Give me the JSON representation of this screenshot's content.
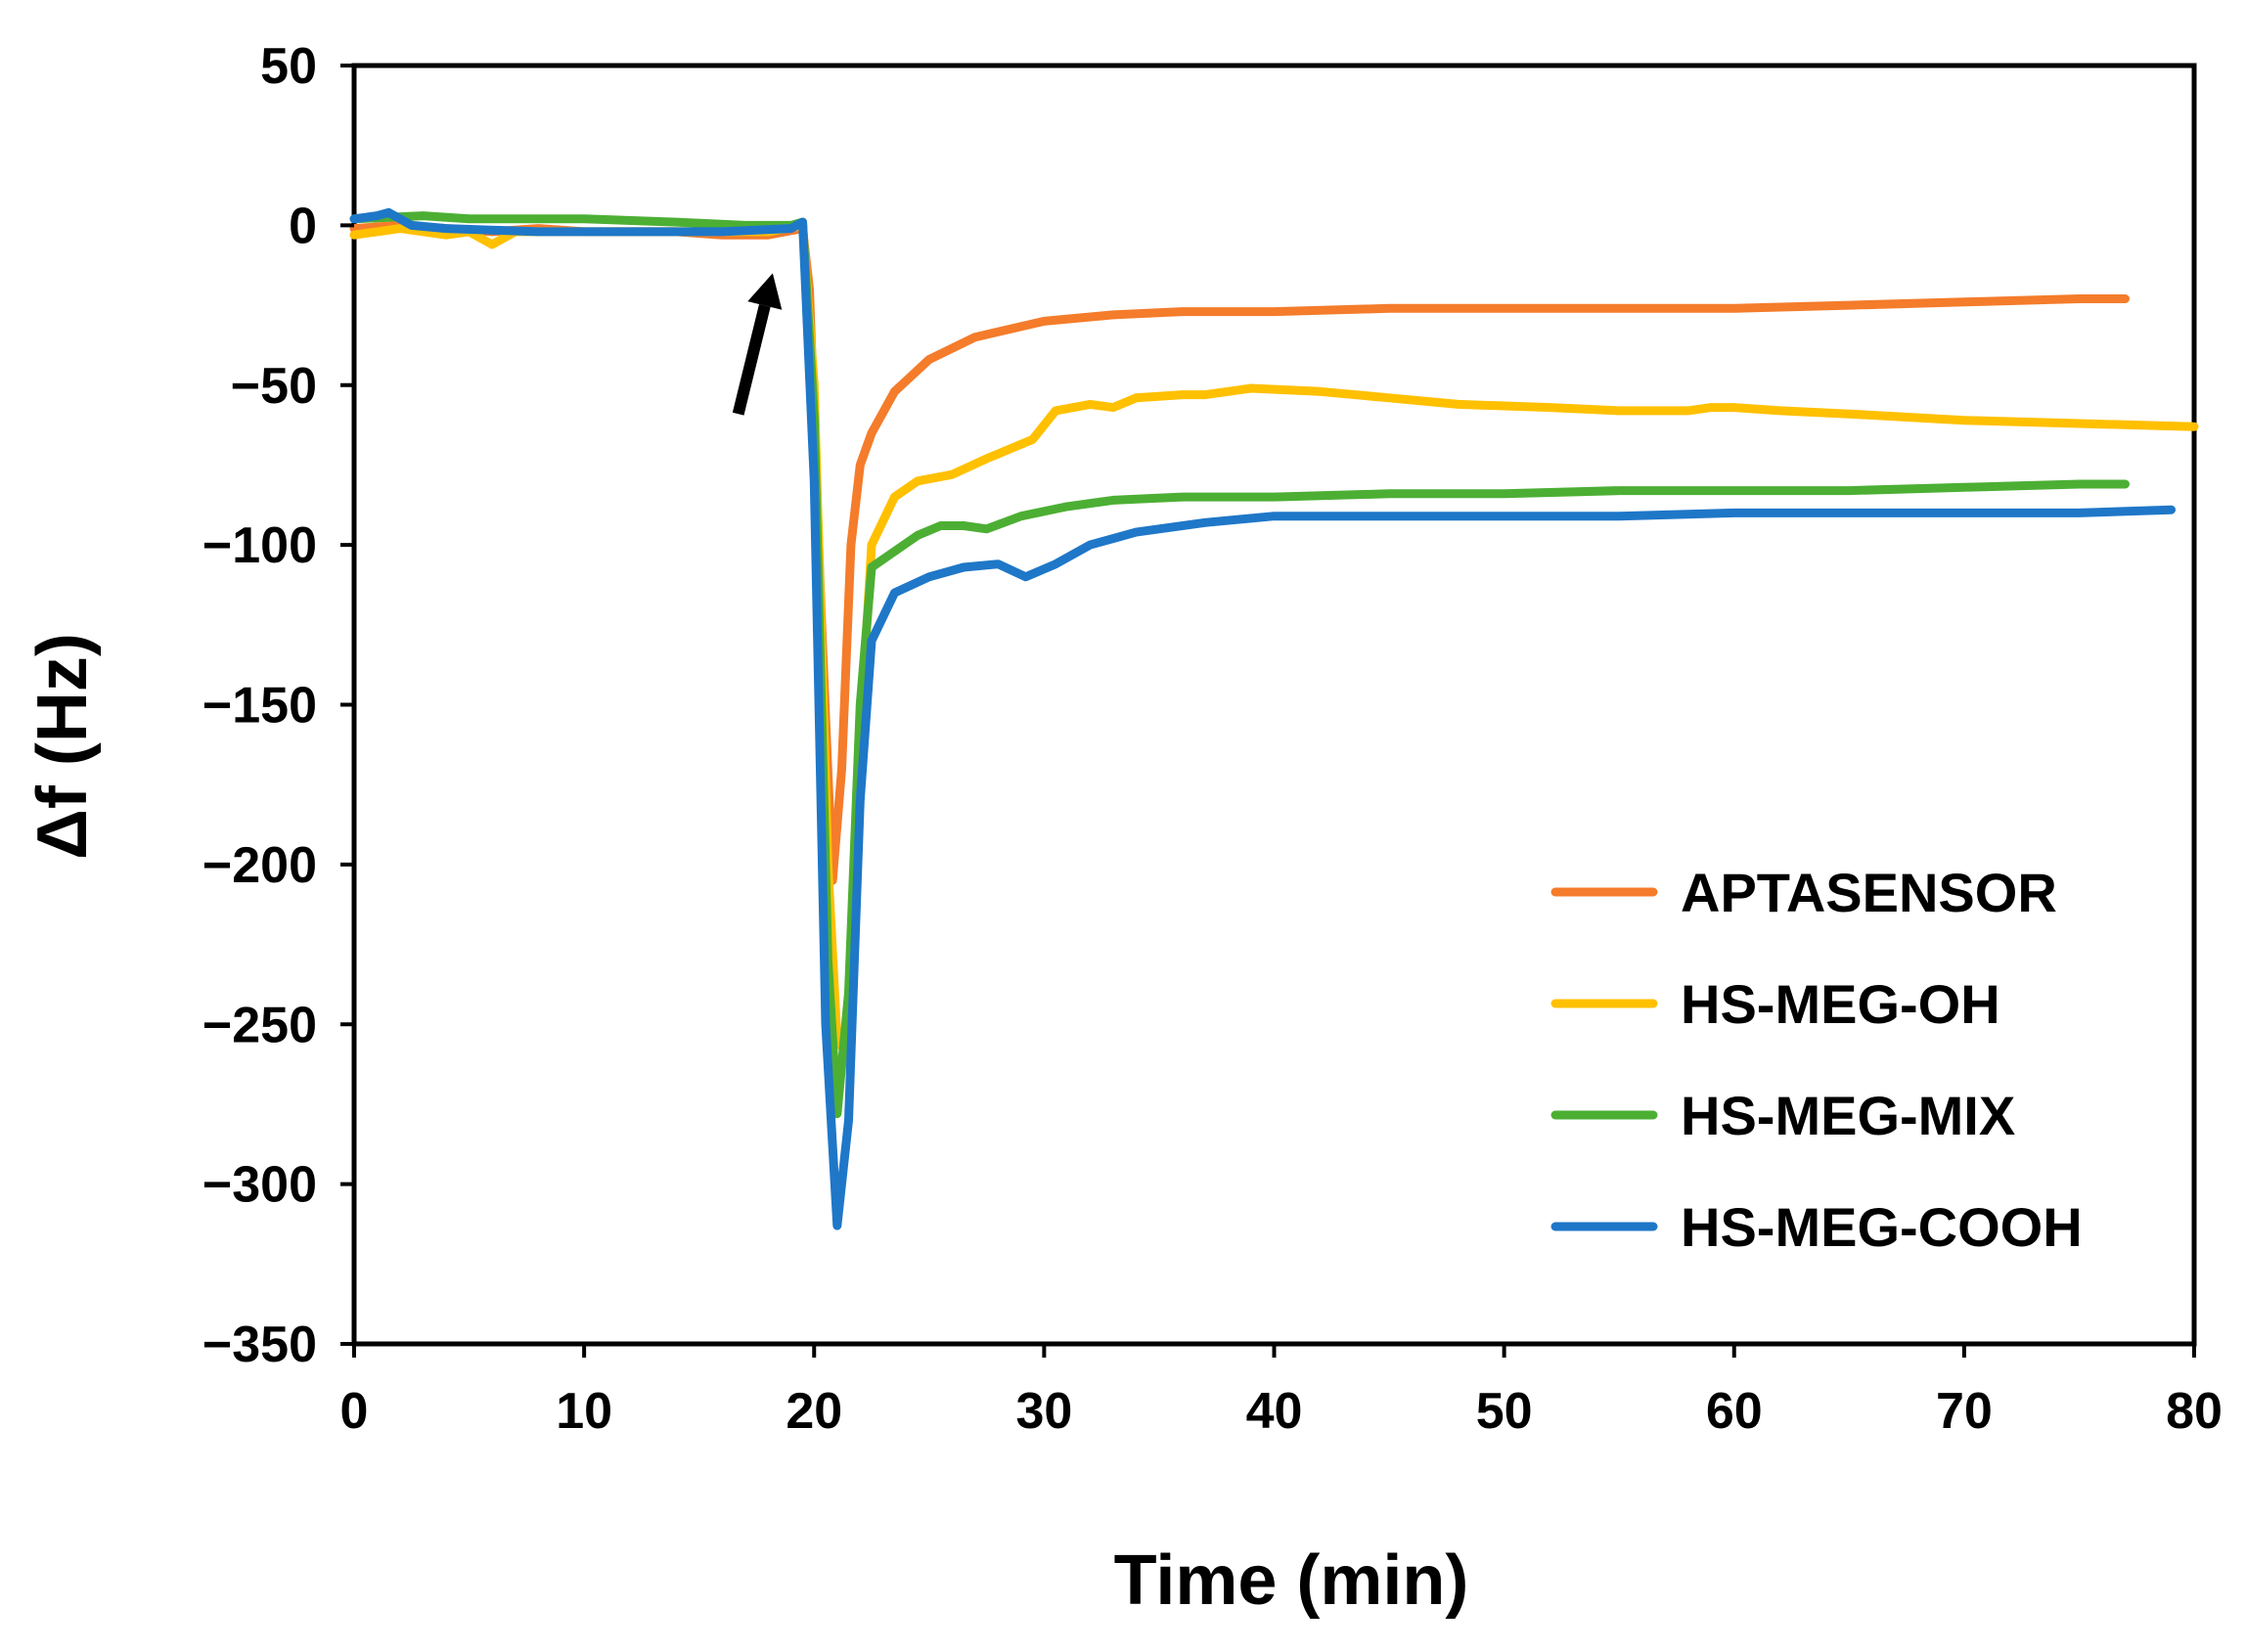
{
  "chart_data": {
    "type": "line",
    "title": "",
    "xlabel": "Time (min)",
    "ylabel": "Δf (Hz)",
    "xlim": [
      0,
      80
    ],
    "ylim": [
      -350,
      50
    ],
    "x_ticks": [
      0,
      10,
      20,
      30,
      40,
      50,
      60,
      70,
      80
    ],
    "y_ticks": [
      50,
      0,
      -50,
      -100,
      -150,
      -200,
      -250,
      -300,
      -350
    ],
    "x_tick_labels": [
      "0",
      "10",
      "20",
      "30",
      "40",
      "50",
      "60",
      "70",
      "80"
    ],
    "y_tick_labels": [
      "50",
      "0",
      "−50",
      "−100",
      "−150",
      "−200",
      "−250",
      "−300",
      "−350"
    ],
    "grid": false,
    "legend_position": "bottom-right",
    "annotations": [
      {
        "type": "arrow",
        "description": "injection point",
        "from": [
          16.7,
          -59
        ],
        "to": [
          18.2,
          -15
        ]
      }
    ],
    "series": [
      {
        "name": "APTASENSOR",
        "color": "#F47C2B",
        "points": [
          [
            0,
            -1
          ],
          [
            2,
            0
          ],
          [
            4,
            -1
          ],
          [
            6,
            -2
          ],
          [
            8,
            -1
          ],
          [
            10,
            -2
          ],
          [
            12,
            -2
          ],
          [
            14,
            -2
          ],
          [
            16,
            -3
          ],
          [
            18,
            -3
          ],
          [
            19.5,
            -1
          ],
          [
            19.8,
            -20
          ],
          [
            20.3,
            -120
          ],
          [
            20.8,
            -205
          ],
          [
            21.2,
            -170
          ],
          [
            21.6,
            -100
          ],
          [
            22,
            -75
          ],
          [
            22.5,
            -65
          ],
          [
            23.5,
            -52
          ],
          [
            25,
            -42
          ],
          [
            27,
            -35
          ],
          [
            30,
            -30
          ],
          [
            33,
            -28
          ],
          [
            36,
            -27
          ],
          [
            40,
            -27
          ],
          [
            45,
            -26
          ],
          [
            50,
            -26
          ],
          [
            55,
            -26
          ],
          [
            60,
            -26
          ],
          [
            65,
            -25
          ],
          [
            70,
            -24
          ],
          [
            75,
            -23
          ],
          [
            77,
            -23
          ]
        ]
      },
      {
        "name": "HS-MEG-OH",
        "color": "#FFC000",
        "points": [
          [
            0,
            -3
          ],
          [
            2,
            -1
          ],
          [
            4,
            -3
          ],
          [
            5,
            -2
          ],
          [
            6,
            -6
          ],
          [
            7,
            -2
          ],
          [
            10,
            -2
          ],
          [
            14,
            -2
          ],
          [
            18,
            -2
          ],
          [
            19.5,
            0
          ],
          [
            20,
            -50
          ],
          [
            20.6,
            -200
          ],
          [
            21,
            -255
          ],
          [
            21.5,
            -260
          ],
          [
            22,
            -160
          ],
          [
            22.5,
            -100
          ],
          [
            23.5,
            -85
          ],
          [
            24.5,
            -80
          ],
          [
            26,
            -78
          ],
          [
            27.5,
            -73
          ],
          [
            28.5,
            -70
          ],
          [
            29.5,
            -67
          ],
          [
            30.5,
            -58
          ],
          [
            32,
            -56
          ],
          [
            33,
            -57
          ],
          [
            34,
            -54
          ],
          [
            36,
            -53
          ],
          [
            37,
            -53
          ],
          [
            39,
            -51
          ],
          [
            42,
            -52
          ],
          [
            45,
            -54
          ],
          [
            48,
            -56
          ],
          [
            52,
            -57
          ],
          [
            55,
            -58
          ],
          [
            58,
            -58
          ],
          [
            59,
            -57
          ],
          [
            60,
            -57
          ],
          [
            62,
            -58
          ],
          [
            65,
            -59
          ],
          [
            70,
            -61
          ],
          [
            75,
            -62
          ],
          [
            80,
            -63
          ]
        ]
      },
      {
        "name": "HS-MEG-MIX",
        "color": "#4CAF34",
        "points": [
          [
            0,
            2
          ],
          [
            3,
            3
          ],
          [
            5,
            2
          ],
          [
            10,
            2
          ],
          [
            14,
            1
          ],
          [
            17,
            0
          ],
          [
            19,
            0
          ],
          [
            19.5,
            1
          ],
          [
            20,
            -60
          ],
          [
            20.6,
            -230
          ],
          [
            21,
            -278
          ],
          [
            21.5,
            -240
          ],
          [
            22,
            -150
          ],
          [
            22.5,
            -107
          ],
          [
            23.5,
            -102
          ],
          [
            24.5,
            -97
          ],
          [
            25.5,
            -94
          ],
          [
            26.5,
            -94
          ],
          [
            27.5,
            -95
          ],
          [
            29,
            -91
          ],
          [
            31,
            -88
          ],
          [
            33,
            -86
          ],
          [
            36,
            -85
          ],
          [
            40,
            -85
          ],
          [
            45,
            -84
          ],
          [
            50,
            -84
          ],
          [
            55,
            -83
          ],
          [
            60,
            -83
          ],
          [
            65,
            -83
          ],
          [
            70,
            -82
          ],
          [
            75,
            -81
          ],
          [
            77,
            -81
          ]
        ]
      },
      {
        "name": "HS-MEG-COOH",
        "color": "#1F77C8",
        "points": [
          [
            0,
            2
          ],
          [
            1,
            3
          ],
          [
            1.5,
            4
          ],
          [
            2,
            2
          ],
          [
            2.5,
            0
          ],
          [
            4,
            -1
          ],
          [
            8,
            -2
          ],
          [
            10,
            -2
          ],
          [
            14,
            -2
          ],
          [
            16,
            -2
          ],
          [
            19,
            -1
          ],
          [
            19.5,
            1
          ],
          [
            20,
            -80
          ],
          [
            20.5,
            -250
          ],
          [
            21,
            -313
          ],
          [
            21.5,
            -280
          ],
          [
            22,
            -180
          ],
          [
            22.5,
            -130
          ],
          [
            23.5,
            -115
          ],
          [
            25,
            -110
          ],
          [
            26.5,
            -107
          ],
          [
            28,
            -106
          ],
          [
            29.2,
            -110
          ],
          [
            30.5,
            -106
          ],
          [
            32,
            -100
          ],
          [
            34,
            -96
          ],
          [
            37,
            -93
          ],
          [
            40,
            -91
          ],
          [
            45,
            -91
          ],
          [
            50,
            -91
          ],
          [
            55,
            -91
          ],
          [
            60,
            -90
          ],
          [
            65,
            -90
          ],
          [
            70,
            -90
          ],
          [
            75,
            -90
          ],
          [
            79,
            -89
          ]
        ]
      }
    ]
  }
}
